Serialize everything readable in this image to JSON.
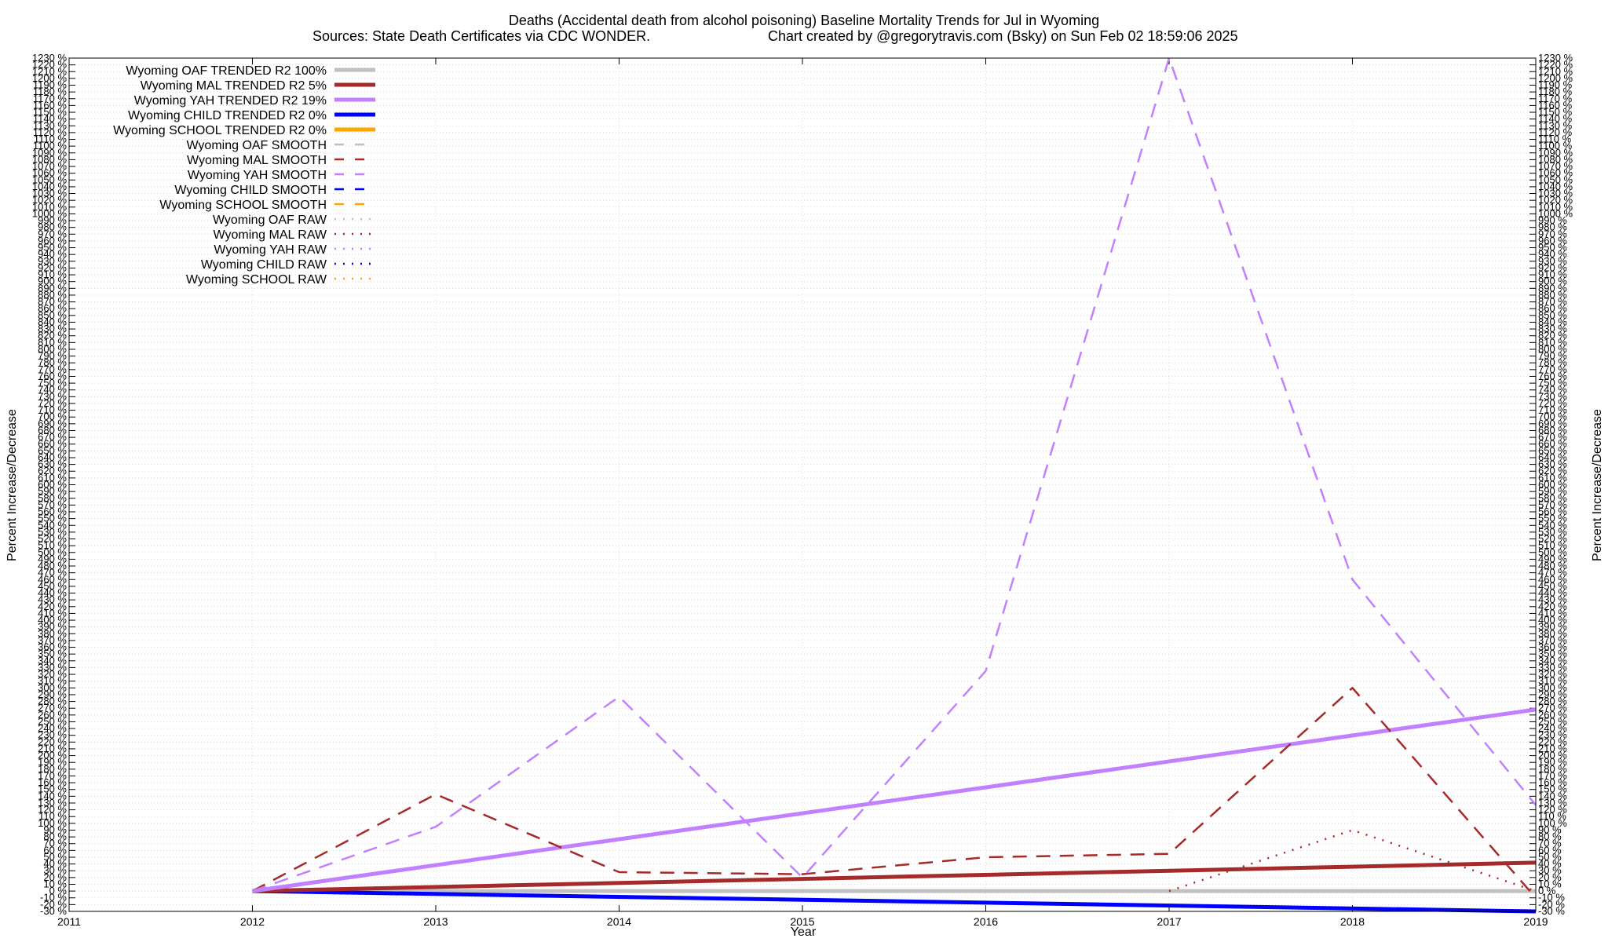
{
  "chart_data": {
    "type": "line",
    "title": "Deaths (Accidental death from alcohol poisoning)  Baseline Mortality Trends for Jul in Wyoming",
    "subtitle_left": "Sources: State Death Certificates via CDC WONDER.",
    "subtitle_right": "Chart created by @gregorytravis.com (Bsky) on Sun Feb 02 18:59:06 2025",
    "xlabel": "Year",
    "ylabel_left": "Percent Increase/Decrease",
    "ylabel_right": "Percent Increase/Decrease",
    "xlim": [
      2011,
      2019
    ],
    "ylim": [
      -30,
      1230
    ],
    "x_ticks": [
      2011,
      2012,
      2013,
      2014,
      2015,
      2016,
      2017,
      2018,
      2019
    ],
    "y_tick_step": 10,
    "y_tick_suffix": " %",
    "grid": true,
    "legend_position": "top-left",
    "series": [
      {
        "name": "Wyoming OAF TRENDED R2 100%",
        "style": "trend",
        "color": "#c0c0c0",
        "x": [
          2012,
          2019
        ],
        "y": [
          0,
          0
        ]
      },
      {
        "name": "Wyoming MAL TRENDED R2   5%",
        "style": "trend",
        "color": "#a52a2a",
        "x": [
          2012,
          2019
        ],
        "y": [
          0,
          42
        ]
      },
      {
        "name": "Wyoming YAH TRENDED R2  19%",
        "style": "trend",
        "color": "#c080ff",
        "x": [
          2012,
          2019
        ],
        "y": [
          0,
          268
        ]
      },
      {
        "name": "Wyoming CHILD TRENDED R2   0%",
        "style": "trend",
        "color": "#0000ff",
        "x": [
          2012,
          2019
        ],
        "y": [
          0,
          -30
        ]
      },
      {
        "name": "Wyoming SCHOOL TRENDED R2   0%",
        "style": "trend",
        "color": "#ffa500",
        "x": [],
        "y": []
      },
      {
        "name": "Wyoming OAF SMOOTH",
        "style": "smooth",
        "color": "#c0c0c0",
        "x": [],
        "y": []
      },
      {
        "name": "Wyoming MAL SMOOTH",
        "style": "smooth",
        "color": "#a52a2a",
        "x": [
          2012,
          2013,
          2014,
          2015,
          2016,
          2017,
          2018,
          2019
        ],
        "y": [
          0,
          143,
          28,
          25,
          50,
          55,
          300,
          -10
        ]
      },
      {
        "name": "Wyoming YAH SMOOTH",
        "style": "smooth",
        "color": "#c080ff",
        "x": [
          2012,
          2013,
          2014,
          2015,
          2016,
          2017,
          2018,
          2019
        ],
        "y": [
          0,
          95,
          287,
          20,
          325,
          1230,
          460,
          127
        ]
      },
      {
        "name": "Wyoming CHILD SMOOTH",
        "style": "smooth",
        "color": "#0000ff",
        "x": [],
        "y": []
      },
      {
        "name": "Wyoming SCHOOL SMOOTH",
        "style": "smooth",
        "color": "#ffa500",
        "x": [],
        "y": []
      },
      {
        "name": "Wyoming OAF RAW",
        "style": "raw",
        "color": "#c0c0c0",
        "x": [],
        "y": []
      },
      {
        "name": "Wyoming MAL RAW",
        "style": "raw",
        "color": "#a52a2a",
        "x": [
          2017,
          2018,
          2019
        ],
        "y": [
          0,
          90,
          0
        ]
      },
      {
        "name": "Wyoming YAH RAW",
        "style": "raw",
        "color": "#c080ff",
        "x": [],
        "y": []
      },
      {
        "name": "Wyoming CHILD RAW",
        "style": "raw",
        "color": "#0000ff",
        "x": [],
        "y": []
      },
      {
        "name": "Wyoming SCHOOL RAW",
        "style": "raw",
        "color": "#ffa500",
        "x": [],
        "y": []
      }
    ]
  }
}
